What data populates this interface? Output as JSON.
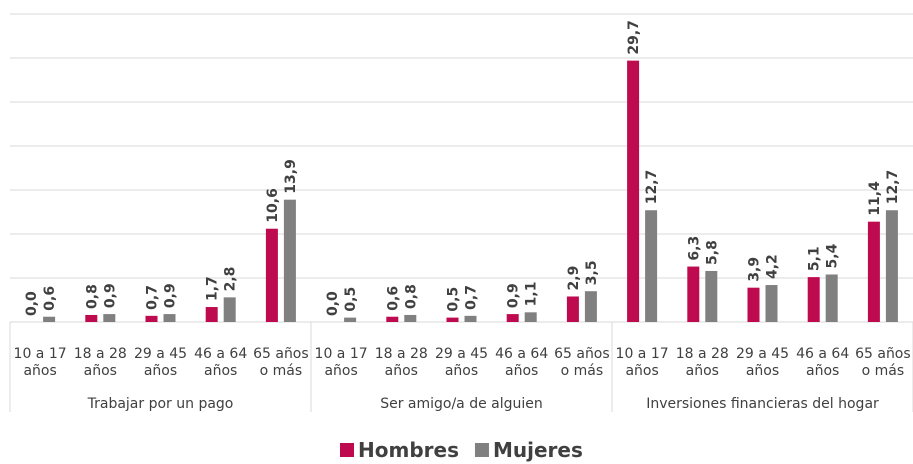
{
  "chart_data": {
    "type": "bar",
    "groups": [
      "Trabajar por un pago",
      "Ser amigo/a de alguien",
      "Inversiones financieras del hogar"
    ],
    "categories": [
      "10 a 17 años",
      "18 a 28 años",
      "29 a 45 años",
      "46 a 64 años",
      "65 años o más",
      "10 a 17 años",
      "18 a 28 años",
      "29 a 45 años",
      "46 a 64 años",
      "65 años o más",
      "10 a 17 años",
      "18 a 28 años",
      "29 a 45 años",
      "46 a 64 años",
      "65 años o más"
    ],
    "series": [
      {
        "name": "Hombres",
        "color": "#be0a4f",
        "values": [
          0.0,
          0.8,
          0.7,
          1.7,
          10.6,
          0.0,
          0.6,
          0.5,
          0.9,
          2.9,
          29.7,
          6.3,
          3.9,
          5.1,
          11.4
        ],
        "value_labels": [
          "0,0",
          "0,8",
          "0,7",
          "1,7",
          "10,6",
          "0,0",
          "0,6",
          "0,5",
          "0,9",
          "2,9",
          "29,7",
          "6,3",
          "3,9",
          "5,1",
          "11,4"
        ]
      },
      {
        "name": "Mujeres",
        "color": "#808080",
        "values": [
          0.6,
          0.9,
          0.9,
          2.8,
          13.9,
          0.5,
          0.8,
          0.7,
          1.1,
          3.5,
          12.7,
          5.8,
          4.2,
          5.4,
          12.7
        ],
        "value_labels": [
          "0,6",
          "0,9",
          "0,9",
          "2,8",
          "13,9",
          "0,5",
          "0,8",
          "0,7",
          "1,1",
          "3,5",
          "12,7",
          "5,8",
          "4,2",
          "5,4",
          "12,7"
        ]
      }
    ],
    "ylim": [
      0,
      35
    ],
    "yticks": [
      0,
      5,
      10,
      15,
      20,
      25,
      30,
      35
    ],
    "grid": true,
    "legend": "bottom"
  }
}
